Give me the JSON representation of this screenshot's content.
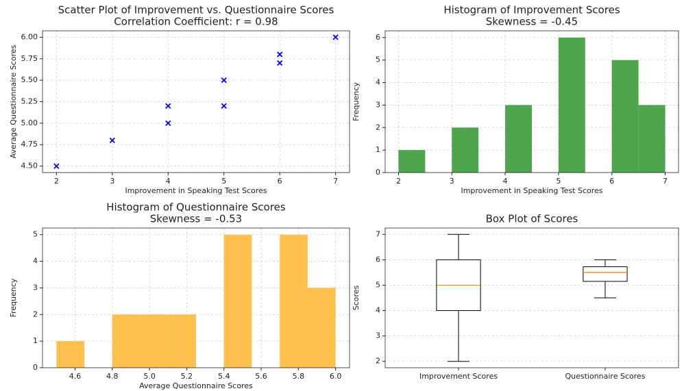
{
  "chart_data": [
    {
      "type": "scatter",
      "title": "Scatter Plot of Improvement vs. Questionnaire Scores",
      "subtitle": "Correlation Coefficient: r = 0.98",
      "xlabel": "Improvement in Speaking Test Scores",
      "ylabel": "Average Questionnaire Scores",
      "x": [
        2,
        3,
        4,
        4,
        5,
        5,
        6,
        6,
        7
      ],
      "values": [
        4.5,
        4.8,
        5.0,
        5.2,
        5.2,
        5.5,
        5.7,
        5.8,
        6.0
      ],
      "color": "#0000ff",
      "xlim": [
        1.75,
        7.25
      ],
      "xticks": [
        2,
        3,
        4,
        5,
        6,
        7
      ],
      "ylim": [
        4.425,
        6.075
      ],
      "yticks": [
        {
          "value": 4.5,
          "label": "4.50"
        },
        4.75,
        {
          "value": 5.0,
          "label": "5.00"
        },
        5.25,
        {
          "value": 5.5,
          "label": "5.50"
        },
        5.75,
        {
          "value": 6.0,
          "label": "6.00"
        }
      ],
      "grid": true
    },
    {
      "type": "histogram",
      "title": "Histogram of Improvement Scores",
      "subtitle": "Skewness = -0.45",
      "xlabel": "Improvement in Speaking Test Scores",
      "ylabel": "Frequency",
      "bins": [
        2,
        2.5,
        3,
        3.5,
        4,
        4.5,
        5,
        5.5,
        6,
        6.5,
        7
      ],
      "values": [
        1,
        0,
        2,
        0,
        3,
        0,
        6,
        0,
        5,
        3
      ],
      "color": "#4da64d",
      "xlim": [
        1.75,
        7.25
      ],
      "xticks": [
        2,
        3,
        4,
        5,
        6,
        7
      ],
      "ylim": [
        0,
        6.3
      ],
      "yticks": [
        0,
        1,
        2,
        3,
        4,
        5,
        6
      ],
      "grid": true
    },
    {
      "type": "histogram",
      "title": "Histogram of Questionnaire Scores",
      "subtitle": "Skewness = -0.53",
      "xlabel": "Average Questionnaire Scores",
      "ylabel": "Frequency",
      "bins": [
        4.5,
        4.65,
        4.8,
        4.95,
        5.1,
        5.25,
        5.4,
        5.55,
        5.7,
        5.85,
        6.0
      ],
      "values": [
        1,
        0,
        2,
        2,
        2,
        0,
        5,
        0,
        5,
        3
      ],
      "color": "#ffc04d",
      "xlim": [
        4.425,
        6.075
      ],
      "xticks": [
        4.6,
        4.8,
        {
          "value": 5.0,
          "label": "5.0"
        },
        5.2,
        5.4,
        5.6,
        5.8,
        {
          "value": 6.0,
          "label": "6.0"
        }
      ],
      "ylim": [
        0,
        5.25
      ],
      "yticks": [
        0,
        1,
        2,
        3,
        4,
        5
      ],
      "grid": true
    },
    {
      "type": "box",
      "title": "Box Plot of Scores",
      "ylabel": "Scores",
      "categories": [
        "Improvement Scores",
        "Questionnaire Scores"
      ],
      "boxes": [
        {
          "whislo": 2,
          "q1": 4,
          "med": 5,
          "q3": 6,
          "whishi": 7
        },
        {
          "whislo": 4.5,
          "q1": 5.15,
          "med": 5.5,
          "q3": 5.725,
          "whishi": 6.0
        }
      ],
      "color": "#000000",
      "median_color": "#ff7f0e",
      "ylim": [
        1.75,
        7.25
      ],
      "yticks": [
        2,
        3,
        4,
        5,
        6,
        7
      ],
      "grid": true
    }
  ]
}
